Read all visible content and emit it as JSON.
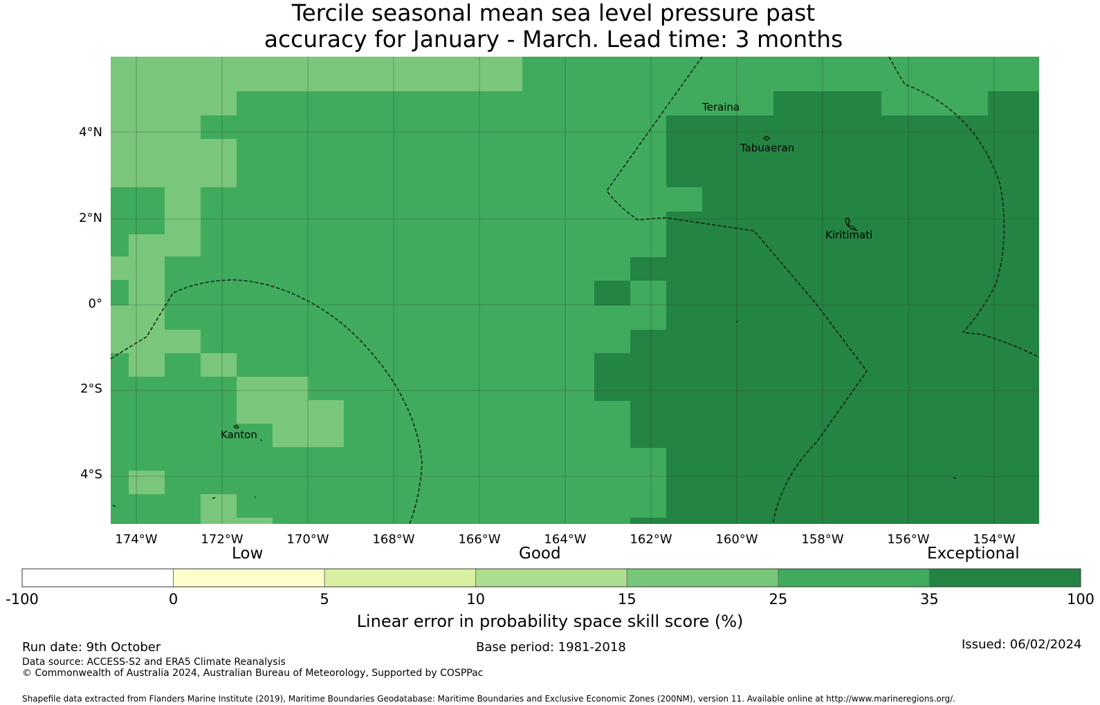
{
  "title": {
    "line1": "Tercile seasonal mean sea level pressure past",
    "line2": "accuracy for January - March. Lead time: 3 months"
  },
  "map": {
    "lat_labels": [
      "4°N",
      "2°N",
      "0°",
      "2°S",
      "4°S"
    ],
    "lon_labels": [
      "174°W",
      "172°W",
      "170°W",
      "168°W",
      "166°W",
      "164°W",
      "162°W",
      "160°W",
      "158°W",
      "156°W",
      "154°W"
    ],
    "place_labels": [
      "Teraina",
      "Tabuaeran",
      "Kiritimati",
      "Kanton"
    ],
    "grid_levels": [
      "25-35",
      "15-25",
      "35-100"
    ],
    "colors": {
      "level_15_25": "#7ac67b",
      "level_25_35": "#41ab5d",
      "level_35_100": "#238443",
      "gridline": "#2a2a2a",
      "boundary": "#000000"
    }
  },
  "categories": [
    "Low",
    "Good",
    "Exceptional"
  ],
  "colorbar": {
    "ticks": [
      "-100",
      "0",
      "5",
      "10",
      "15",
      "25",
      "35",
      "100"
    ],
    "colors": [
      "#ffffff",
      "#ffffcc",
      "#d9f0a3",
      "#addd8e",
      "#78c679",
      "#41ab5d",
      "#238443"
    ],
    "title": "Linear error in probability space skill score (%)"
  },
  "footer": {
    "run_date": "Run date: 9th October",
    "base_period": "Base period: 1981-2018",
    "issued": "Issued: 06/02/2024",
    "data_source": "Data source: ACCESS-S2 and ERA5 Climate Reanalysis",
    "copyright": "© Commonwealth of Australia 2024, Australian Bureau of Meteorology, Supported by COSPPac",
    "shapefile": "Shapefile data extracted from Flanders Marine Institute (2019), Maritime Boundaries Geodatabase: Maritime Boundaries and Exclusive Economic Zones (200NM), version 11. Available online at http://www.marineregions.org/."
  }
}
